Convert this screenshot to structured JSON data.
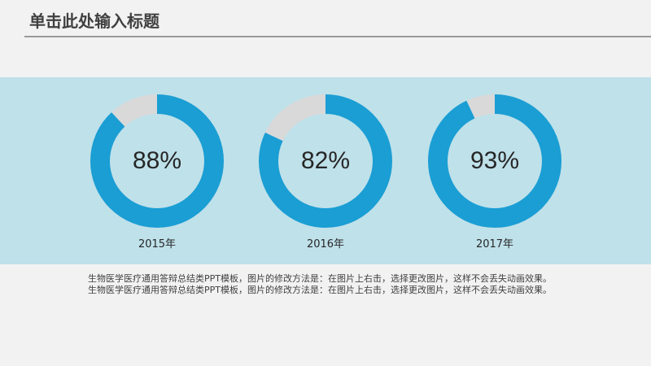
{
  "slide": {
    "title": "单击此处输入标题",
    "description": [
      "生物医学医疗通用答辩总结类PPT模板，图片的修改方法是：在图片上右击，选择更改图片，这样不会丢失动画效果。",
      "生物医学医疗通用答辩总结类PPT模板，图片的修改方法是：在图片上右击，选择更改图片，这样不会丢失动画效果。"
    ]
  },
  "colors": {
    "ring_fill": "#1a9ed4",
    "ring_track": "#d9d9d9",
    "band": "#bfe1ea"
  },
  "chart_data": {
    "type": "pie",
    "charts": [
      {
        "label": "2015年",
        "value": 88,
        "display": "88%"
      },
      {
        "label": "2016年",
        "value": 82,
        "display": "82%"
      },
      {
        "label": "2017年",
        "value": 93,
        "display": "93%"
      }
    ]
  }
}
